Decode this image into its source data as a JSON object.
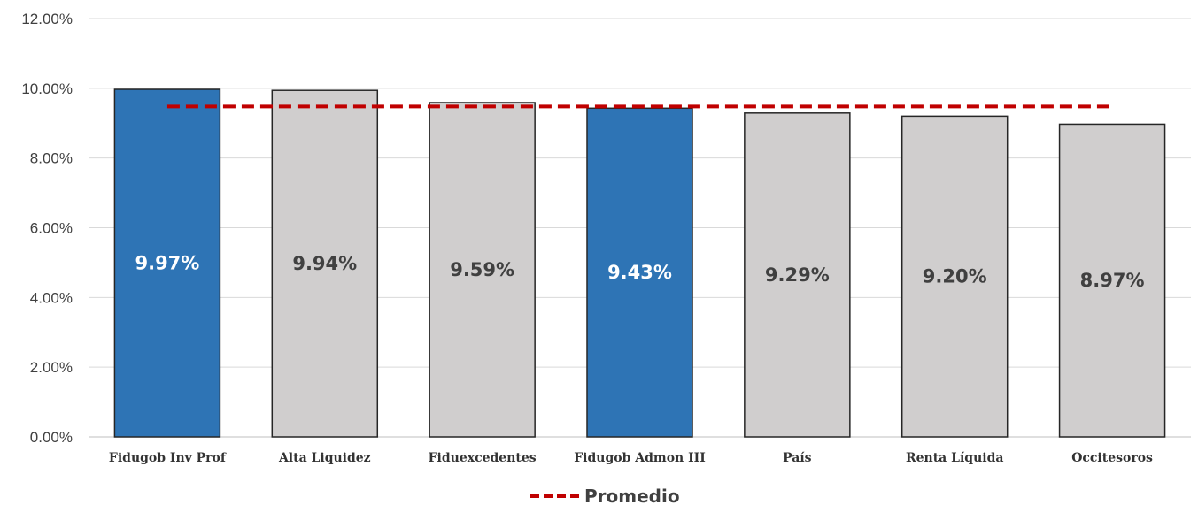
{
  "chart_data": {
    "type": "bar",
    "categories": [
      "Fidugob Inv Prof",
      "Alta Liquidez",
      "Fiduexcedentes",
      "Fidugob Admon III",
      "País",
      "Renta Líquida",
      "Occitesoros"
    ],
    "values": [
      9.97,
      9.94,
      9.59,
      9.43,
      9.29,
      9.2,
      8.97
    ],
    "data_labels": [
      "9.97%",
      "9.94%",
      "9.59%",
      "9.43%",
      "9.29%",
      "9.20%",
      "8.97%"
    ],
    "highlighted": [
      true,
      false,
      false,
      true,
      false,
      false,
      false
    ],
    "average": {
      "name": "Promedio",
      "value": 9.48,
      "style": "dashed",
      "color": "#c00000"
    },
    "y_ticks": [
      "0.00%",
      "2.00%",
      "4.00%",
      "6.00%",
      "8.00%",
      "10.00%",
      "12.00%"
    ],
    "ylim": [
      0,
      12
    ],
    "grid": true,
    "legend_position": "bottom-center",
    "colors": {
      "highlight_bar": "#2e74b5",
      "normal_bar": "#d0cece",
      "bar_outline": "#262626",
      "highlight_label": "#ffffff",
      "normal_label": "#404040",
      "average_line": "#c00000",
      "grid": "#d9d9d9"
    }
  }
}
